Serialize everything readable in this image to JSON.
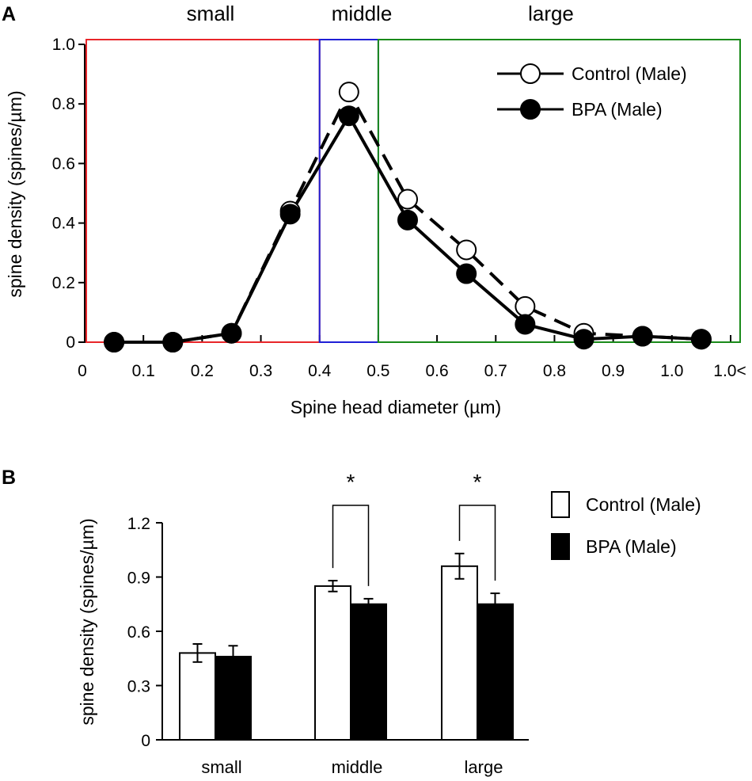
{
  "chart_data": [
    {
      "panel": "A",
      "type": "line",
      "xlabel": "Spine head diameter (µm)",
      "ylabel": "spine density (spines/µm)",
      "ylim": [
        0,
        1.0
      ],
      "x_tick_labels": [
        "0",
        "0.1",
        "0.2",
        "0.3",
        "0.4",
        "0.5",
        "0.6",
        "0.7",
        "0.8",
        "0.9",
        "1.0",
        "1.0<"
      ],
      "y_tick_labels": [
        "0",
        "0.2",
        "0.4",
        "0.6",
        "0.8",
        "1.0"
      ],
      "y_ticks": [
        0,
        0.2,
        0.4,
        0.6,
        0.8,
        1.0
      ],
      "x_points": [
        0.05,
        0.15,
        0.25,
        0.35,
        0.45,
        0.55,
        0.65,
        0.75,
        0.85,
        0.95,
        1.05
      ],
      "series": [
        {
          "name": "Control (Male)",
          "marker": "open-circle",
          "line": "dashed",
          "values": [
            0,
            0,
            0.03,
            0.44,
            0.84,
            0.48,
            0.31,
            0.12,
            0.03,
            0.02,
            0.01
          ]
        },
        {
          "name": "BPA (Male)",
          "marker": "filled-circle",
          "line": "solid",
          "values": [
            0,
            0,
            0.03,
            0.43,
            0.76,
            0.41,
            0.23,
            0.06,
            0.01,
            0.02,
            0.01
          ]
        }
      ],
      "regions": [
        {
          "label": "small",
          "range": [
            0,
            0.4
          ],
          "color": "#e8262a"
        },
        {
          "label": "middle",
          "range": [
            0.4,
            0.5
          ],
          "color": "#1f1fd6"
        },
        {
          "label": "large",
          "range": [
            0.5,
            1.1
          ],
          "color": "#1a8a1a"
        }
      ],
      "legend_position": "top-right"
    },
    {
      "panel": "B",
      "type": "bar",
      "ylabel": "spine density (spines/µm)",
      "ylim": [
        0,
        1.2
      ],
      "y_tick_labels": [
        "0",
        "0.3",
        "0.6",
        "0.9",
        "1.2"
      ],
      "y_ticks": [
        0,
        0.3,
        0.6,
        0.9,
        1.2
      ],
      "categories": [
        "small",
        "middle",
        "large"
      ],
      "series": [
        {
          "name": "Control (Male)",
          "fill": "open",
          "values": [
            0.48,
            0.85,
            0.96
          ],
          "errors": [
            0.05,
            0.03,
            0.07
          ]
        },
        {
          "name": "BPA (Male)",
          "fill": "filled",
          "values": [
            0.46,
            0.75,
            0.75
          ],
          "errors": [
            0.06,
            0.03,
            0.06
          ]
        }
      ],
      "significance": [
        {
          "category": "middle",
          "label": "*"
        },
        {
          "category": "large",
          "label": "*"
        }
      ],
      "legend_position": "top-right"
    }
  ],
  "colors": {
    "small": "#e8262a",
    "middle": "#1f1fd6",
    "large": "#1a8a1a",
    "ink": "#000000"
  }
}
